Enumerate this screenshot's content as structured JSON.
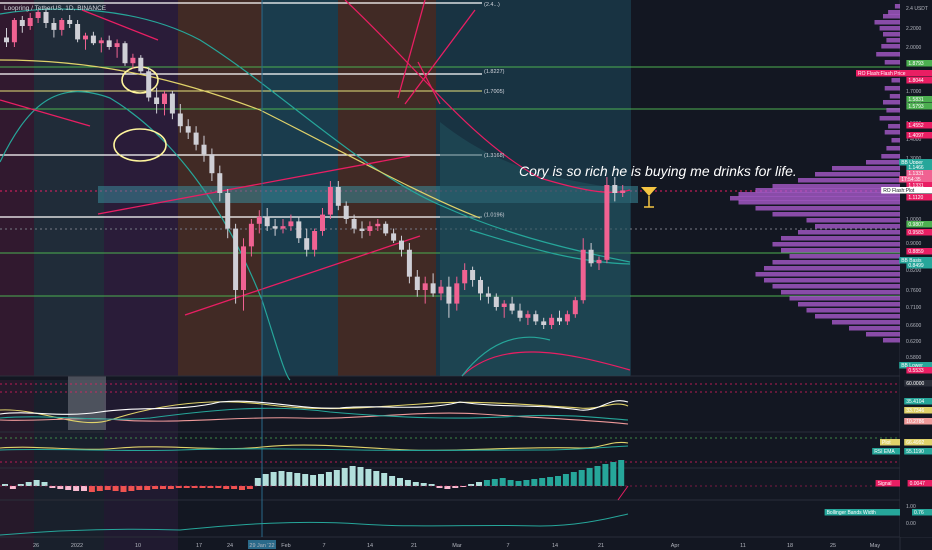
{
  "header": {
    "symbol": "Loopring / TetherUS, 1D, BINANCE"
  },
  "annotation": {
    "text": "Cory is so rich he is buying me drinks for life."
  },
  "icons": {
    "drink": "cocktail-glass-icon"
  },
  "colors": {
    "background": "#131722",
    "bull": "#f06292",
    "bear": "#cfcfd6",
    "fib_white": "#ffffff",
    "fib_green": "#4caf50",
    "fib_yellow": "#e8e27a",
    "bb_basis": "#26a69a",
    "ma_yellow": "#e0d26a",
    "red_line": "#e91e63",
    "volume_profile": "#b15fd6"
  },
  "level_labels": [
    {
      "text": "(2.4...)",
      "price": 2.48
    },
    {
      "text": "(1.8227)",
      "price": 1.8227
    },
    {
      "text": "(1.7005)",
      "price": 1.7005
    },
    {
      "text": "(1.3168)",
      "price": 1.3168
    },
    {
      "text": "(1.0196)",
      "price": 1.0196
    }
  ],
  "price_axis": {
    "ticks": [
      "2.4 USDT",
      "2.2000",
      "2.0000",
      "1.8000",
      "1.7000",
      "1.6000",
      "1.5000",
      "1.4000",
      "1.3000",
      "1.2000",
      "1.1000",
      "1.0000",
      "0.9000",
      "0.8200",
      "0.7600",
      "0.7100",
      "0.6600",
      "0.6200",
      "0.5800"
    ],
    "badges": [
      {
        "text": "1.8793",
        "color": "#4caf50"
      },
      {
        "text": "RO Flash:Flash Price",
        "color": "#e91e63"
      },
      {
        "text": "1.8044",
        "color": "#e91e63"
      },
      {
        "text": "1.5831",
        "color": "#4caf50"
      },
      {
        "text": "1.5793",
        "color": "#4caf50"
      },
      {
        "text": "1.4552",
        "color": "#e91e63"
      },
      {
        "text": "1.4097",
        "color": "#e91e63"
      },
      {
        "text": "BB Upper",
        "color": "#26a69a"
      },
      {
        "text": "1.1466",
        "color": "#26a69a"
      },
      {
        "text": "1.1331",
        "color": "#f06292"
      },
      {
        "text": "17:54:35",
        "color": "#f06292"
      },
      {
        "text": "1.1331",
        "color": "#e91e63"
      },
      {
        "text": "RO Flash:Plot",
        "color": "#ffffff"
      },
      {
        "text": "1.1120",
        "color": "#e91e63"
      },
      {
        "text": "0.9807",
        "color": "#4caf50"
      },
      {
        "text": "0.9583",
        "color": "#e91e63"
      },
      {
        "text": "0.8859",
        "color": "#e91e63"
      },
      {
        "text": "BB Basis",
        "color": "#26a69a"
      },
      {
        "text": "0.8499",
        "color": "#26a69a"
      },
      {
        "text": "BB Lower",
        "color": "#26a69a"
      },
      {
        "text": "0.5533",
        "color": "#e91e63"
      }
    ]
  },
  "time_axis": {
    "ticks": [
      "26",
      "2022",
      "10",
      "17",
      "24",
      "29 Jan '22",
      "Feb",
      "7",
      "14",
      "21",
      "Mar",
      "7",
      "14",
      "21",
      "Apr",
      "11",
      "18",
      "25",
      "May"
    ]
  },
  "dmi_panel": {
    "badges": [
      {
        "text": "60.0000",
        "color": "#2a2e39"
      },
      {
        "text": "+DI",
        "color": "#26a69a"
      },
      {
        "text": "35.4104",
        "color": "#26a69a"
      },
      {
        "text": "ADX",
        "color": "#e0d26a"
      },
      {
        "text": "33.7346",
        "color": "#e0d26a"
      },
      {
        "text": "-DI",
        "color": "#ef9a9a"
      },
      {
        "text": "10.2786",
        "color": "#ef9a9a"
      }
    ]
  },
  "rsi_panel": {
    "badges": [
      {
        "text": "Plot",
        "color": "#e0d26a"
      },
      {
        "text": "66.4992",
        "color": "#e0d26a"
      },
      {
        "text": "RSI EMA",
        "color": "#26a69a"
      },
      {
        "text": "55.1190",
        "color": "#26a69a"
      }
    ]
  },
  "macd_panel": {
    "badges": [
      {
        "text": "Signal",
        "color": "#e91e63"
      },
      {
        "text": "0.0047",
        "color": "#e91e63"
      }
    ]
  },
  "bbw_panel": {
    "badges": [
      {
        "text": "Bollinger Bands Width",
        "color": "#26a69a"
      },
      {
        "text": "0.76",
        "color": "#26a69a"
      }
    ],
    "ticks": [
      "1.00",
      "0.00"
    ]
  },
  "chart_data": {
    "type": "candlestick",
    "symbol": "LRCUSDT",
    "interval": "1D",
    "candles": [
      [
        2.1,
        2.2,
        2.0,
        2.05
      ],
      [
        2.05,
        2.3,
        2.0,
        2.28
      ],
      [
        2.28,
        2.32,
        2.15,
        2.22
      ],
      [
        2.22,
        2.35,
        2.18,
        2.3
      ],
      [
        2.3,
        2.38,
        2.25,
        2.36
      ],
      [
        2.36,
        2.4,
        2.2,
        2.25
      ],
      [
        2.25,
        2.3,
        2.1,
        2.18
      ],
      [
        2.18,
        2.3,
        2.12,
        2.28
      ],
      [
        2.28,
        2.33,
        2.2,
        2.24
      ],
      [
        2.24,
        2.28,
        2.05,
        2.08
      ],
      [
        2.08,
        2.15,
        1.98,
        2.12
      ],
      [
        2.12,
        2.16,
        2.02,
        2.04
      ],
      [
        2.04,
        2.1,
        1.96,
        2.07
      ],
      [
        2.07,
        2.12,
        1.98,
        2.0
      ],
      [
        2.0,
        2.08,
        1.92,
        2.04
      ],
      [
        2.04,
        2.06,
        1.86,
        1.88
      ],
      [
        1.88,
        1.95,
        1.84,
        1.92
      ],
      [
        1.92,
        1.94,
        1.8,
        1.82
      ],
      [
        1.82,
        1.85,
        1.62,
        1.65
      ],
      [
        1.65,
        1.72,
        1.55,
        1.6
      ],
      [
        1.6,
        1.7,
        1.54,
        1.68
      ],
      [
        1.68,
        1.7,
        1.52,
        1.55
      ],
      [
        1.55,
        1.6,
        1.44,
        1.48
      ],
      [
        1.48,
        1.52,
        1.4,
        1.44
      ],
      [
        1.44,
        1.48,
        1.34,
        1.37
      ],
      [
        1.37,
        1.42,
        1.28,
        1.32
      ],
      [
        1.32,
        1.35,
        1.18,
        1.22
      ],
      [
        1.22,
        1.26,
        1.08,
        1.12
      ],
      [
        1.12,
        1.14,
        0.92,
        0.96
      ],
      [
        0.96,
        0.98,
        0.72,
        0.76
      ],
      [
        0.76,
        0.92,
        0.7,
        0.89
      ],
      [
        0.89,
        1.0,
        0.86,
        0.98
      ],
      [
        0.98,
        1.04,
        0.94,
        1.01
      ],
      [
        1.01,
        1.05,
        0.95,
        0.97
      ],
      [
        0.97,
        1.0,
        0.93,
        0.96
      ],
      [
        0.96,
        1.0,
        0.94,
        0.97
      ],
      [
        0.97,
        1.02,
        0.95,
        0.99
      ],
      [
        0.99,
        1.01,
        0.9,
        0.92
      ],
      [
        0.92,
        0.96,
        0.86,
        0.88
      ],
      [
        0.88,
        0.96,
        0.86,
        0.95
      ],
      [
        0.95,
        1.05,
        0.93,
        1.02
      ],
      [
        1.02,
        1.18,
        1.0,
        1.15
      ],
      [
        1.15,
        1.18,
        1.04,
        1.06
      ],
      [
        1.06,
        1.08,
        0.98,
        1.0
      ],
      [
        1.0,
        1.02,
        0.94,
        0.96
      ],
      [
        0.96,
        0.99,
        0.92,
        0.95
      ],
      [
        0.95,
        0.99,
        0.93,
        0.97
      ],
      [
        0.97,
        1.0,
        0.95,
        0.98
      ],
      [
        0.98,
        0.99,
        0.93,
        0.94
      ],
      [
        0.94,
        0.96,
        0.9,
        0.91
      ],
      [
        0.91,
        0.93,
        0.86,
        0.88
      ],
      [
        0.88,
        0.9,
        0.78,
        0.8
      ],
      [
        0.8,
        0.82,
        0.74,
        0.76
      ],
      [
        0.76,
        0.8,
        0.72,
        0.78
      ],
      [
        0.78,
        0.81,
        0.74,
        0.75
      ],
      [
        0.75,
        0.79,
        0.73,
        0.77
      ],
      [
        0.77,
        0.8,
        0.68,
        0.72
      ],
      [
        0.72,
        0.8,
        0.7,
        0.78
      ],
      [
        0.78,
        0.84,
        0.76,
        0.82
      ],
      [
        0.82,
        0.83,
        0.77,
        0.79
      ],
      [
        0.79,
        0.8,
        0.73,
        0.75
      ],
      [
        0.75,
        0.77,
        0.72,
        0.74
      ],
      [
        0.74,
        0.75,
        0.7,
        0.71
      ],
      [
        0.71,
        0.73,
        0.68,
        0.72
      ],
      [
        0.72,
        0.74,
        0.69,
        0.7
      ],
      [
        0.7,
        0.72,
        0.67,
        0.68
      ],
      [
        0.68,
        0.7,
        0.66,
        0.69
      ],
      [
        0.69,
        0.7,
        0.66,
        0.67
      ],
      [
        0.67,
        0.68,
        0.65,
        0.66
      ],
      [
        0.66,
        0.69,
        0.65,
        0.68
      ],
      [
        0.68,
        0.7,
        0.66,
        0.67
      ],
      [
        0.67,
        0.7,
        0.66,
        0.69
      ],
      [
        0.69,
        0.74,
        0.68,
        0.73
      ],
      [
        0.73,
        0.92,
        0.72,
        0.88
      ],
      [
        0.88,
        0.9,
        0.83,
        0.84
      ],
      [
        0.84,
        0.86,
        0.82,
        0.85
      ],
      [
        0.85,
        1.2,
        0.84,
        1.16
      ],
      [
        1.16,
        1.2,
        1.08,
        1.12
      ],
      [
        1.12,
        1.16,
        1.1,
        1.1331
      ]
    ],
    "ylim": [
      0.55,
      2.48
    ],
    "scale": "log"
  }
}
